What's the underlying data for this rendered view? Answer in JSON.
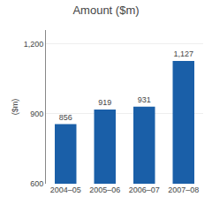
{
  "chart_data": {
    "type": "bar",
    "title": "Amount ($m)",
    "ylabel": "($m)",
    "categories": [
      "2004–05",
      "2005–06",
      "2006–07",
      "2007–08"
    ],
    "values": [
      856,
      919,
      931,
      1127
    ],
    "value_labels": [
      "856",
      "919",
      "931",
      "1,127"
    ],
    "data_labels": true,
    "color": "#1a5fa8",
    "ylim": [
      600,
      1260
    ],
    "yticks": [
      600,
      900,
      {
        "value": 1200,
        "label": "1,200"
      }
    ],
    "grid": true
  }
}
